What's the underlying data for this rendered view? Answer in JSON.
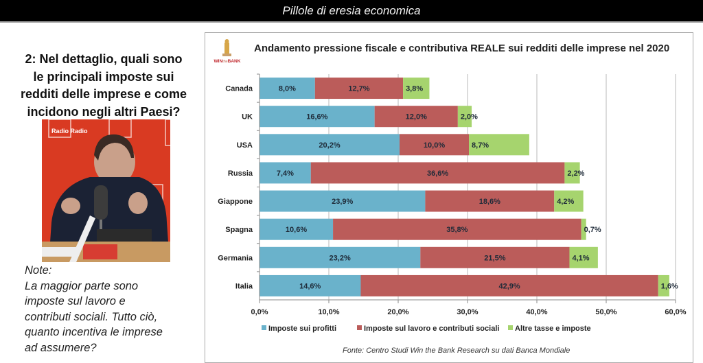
{
  "header": {
    "title": "Pillole di eresia economica"
  },
  "question": {
    "lines": [
      "2: Nel dettaglio, quali sono",
      "le principali imposte sui",
      "redditi delle imprese e come",
      "incidono negli altri Paesi?"
    ]
  },
  "photo": {
    "description": "Man with headphones speaking into microphone in radio studio",
    "wall_text": "Radio Radio"
  },
  "note": {
    "lines": [
      "Note:",
      "La maggior parte sono",
      "imposte sul lavoro e",
      "contributi sociali. Tutto ciò,",
      "quanto incentiva le imprese",
      "ad assumere?"
    ]
  },
  "logo": {
    "text_win": "WIN",
    "text_the": "the",
    "text_bank": "BANK"
  },
  "source": "Fonte: Centro Studi Win the Bank Research su dati Banca Mondiale",
  "colors": {
    "profitti": "#6ab2cb",
    "lavoro": "#bb5c5a",
    "altre": "#a6d46e",
    "grid": "#b8b8b8"
  },
  "chart_data": {
    "type": "bar",
    "orientation": "horizontal",
    "stacked": true,
    "title": "Andamento pressione fiscale e contributiva REALE sui redditi delle imprese nel 2020",
    "xlabel": "",
    "ylabel": "",
    "categories": [
      "Canada",
      "UK",
      "USA",
      "Russia",
      "Giappone",
      "Spagna",
      "Germania",
      "Italia"
    ],
    "series": [
      {
        "name": "Imposte sui profitti",
        "values": [
          8.0,
          16.6,
          20.2,
          7.4,
          23.9,
          10.6,
          23.2,
          14.6
        ],
        "labels": [
          "8,0%",
          "16,6%",
          "20,2%",
          "7,4%",
          "23,9%",
          "10,6%",
          "23,2%",
          "14,6%"
        ]
      },
      {
        "name": "Imposte sul lavoro e contributi sociali",
        "values": [
          12.7,
          12.0,
          10.0,
          36.6,
          18.6,
          35.8,
          21.5,
          42.9
        ],
        "labels": [
          "12,7%",
          "12,0%",
          "10,0%",
          "36,6%",
          "18,6%",
          "35,8%",
          "21,5%",
          "42,9%"
        ]
      },
      {
        "name": "Altre tasse e imposte",
        "values": [
          3.8,
          2.0,
          8.7,
          2.2,
          4.2,
          0.7,
          4.1,
          1.6
        ],
        "labels": [
          "3,8%",
          "2,0%",
          "8,7%",
          "2,2%",
          "4,2%",
          "0,7%",
          "4,1%",
          "1,6%"
        ]
      }
    ],
    "xlim": [
      0,
      60
    ],
    "xticks": [
      0,
      10,
      20,
      30,
      40,
      50,
      60
    ],
    "xtick_labels": [
      "0,0%",
      "10,0%",
      "20,0%",
      "30,0%",
      "40,0%",
      "50,0%",
      "60,0%"
    ],
    "grid": true,
    "legend_position": "bottom"
  }
}
